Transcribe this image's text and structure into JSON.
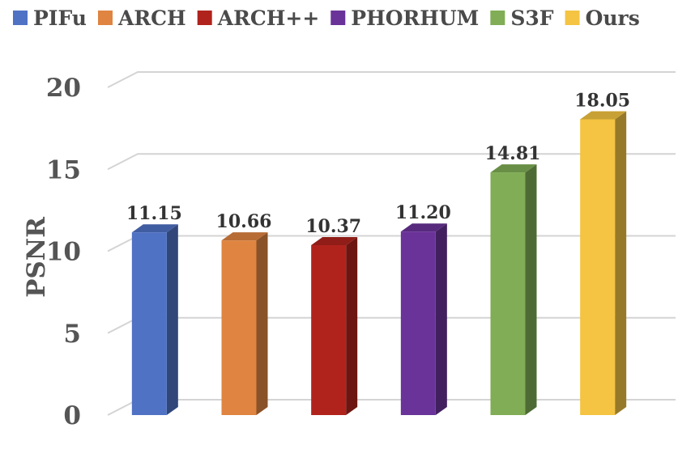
{
  "chart_data": {
    "type": "bar",
    "categories": [
      "PIFu",
      "ARCH",
      "ARCH++",
      "PHORHUM",
      "S3F",
      "Ours"
    ],
    "values": [
      11.15,
      10.66,
      10.37,
      11.2,
      14.81,
      18.05
    ],
    "value_labels": [
      "11.15",
      "10.66",
      "10.37",
      "11.20",
      "14.81",
      "18.05"
    ],
    "colors": [
      "#4f72c4",
      "#df8441",
      "#b0231c",
      "#6a3399",
      "#80ad55",
      "#f4c442"
    ],
    "ylabel": "PSNR",
    "ylim": [
      0,
      20
    ],
    "yticks": [
      "0",
      "5",
      "10",
      "15",
      "20"
    ],
    "grid": true,
    "legend_position": "top",
    "style": "3d-column"
  }
}
